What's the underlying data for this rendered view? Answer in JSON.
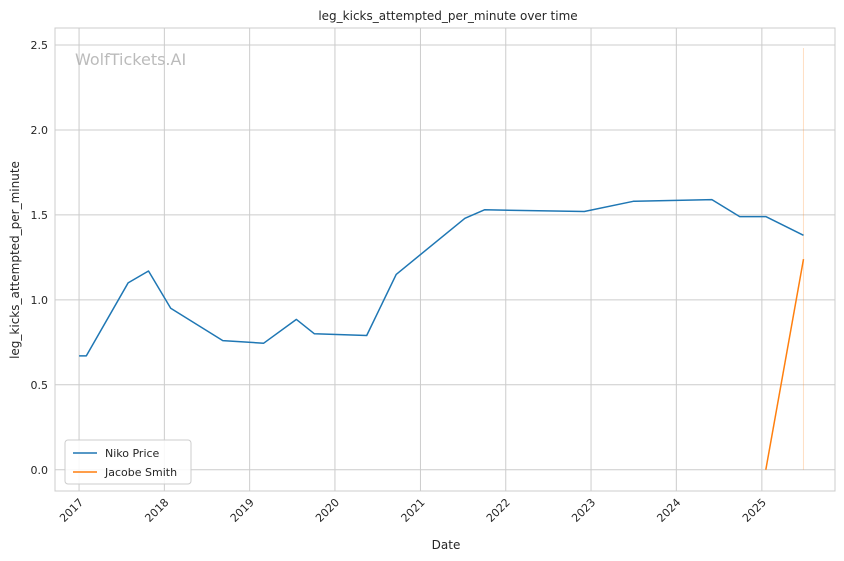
{
  "chart_data": {
    "type": "line",
    "title": "leg_kicks_attempted_per_minute over time",
    "xlabel": "Date",
    "ylabel": "leg_kicks_attempted_per_minute",
    "watermark": "WolfTickets.AI",
    "x_tick_labels": [
      "2017",
      "2018",
      "2019",
      "2020",
      "2021",
      "2022",
      "2023",
      "2024",
      "2025"
    ],
    "y_ticks": [
      0.0,
      0.5,
      1.0,
      1.5,
      2.0,
      2.5
    ],
    "y_tick_labels": [
      "0.0",
      "0.5",
      "1.0",
      "1.5",
      "2.0",
      "2.5"
    ],
    "xlim": [
      "2016-09-20",
      "2025-11-10"
    ],
    "ylim": [
      -0.125,
      2.6
    ],
    "grid": true,
    "legend_position": "lower-left",
    "series": [
      {
        "name": "Niko Price",
        "color": "#1f77b4",
        "points": [
          [
            "2017-01-01",
            0.67
          ],
          [
            "2017-02-01",
            0.67
          ],
          [
            "2017-07-30",
            1.1
          ],
          [
            "2017-10-25",
            1.17
          ],
          [
            "2018-01-28",
            0.95
          ],
          [
            "2018-09-08",
            0.76
          ],
          [
            "2019-03-02",
            0.745
          ],
          [
            "2019-07-20",
            0.885
          ],
          [
            "2019-10-05",
            0.8
          ],
          [
            "2020-05-16",
            0.79
          ],
          [
            "2020-09-19",
            1.15
          ],
          [
            "2021-07-10",
            1.48
          ],
          [
            "2021-10-02",
            1.53
          ],
          [
            "2022-12-03",
            1.52
          ],
          [
            "2023-07-01",
            1.58
          ],
          [
            "2024-06-01",
            1.59
          ],
          [
            "2024-09-28",
            1.49
          ],
          [
            "2025-01-18",
            1.49
          ],
          [
            "2025-06-28",
            1.38
          ]
        ]
      },
      {
        "name": "Jacobe Smith",
        "color": "#ff7f0e",
        "points": [
          [
            "2025-01-18",
            0.0
          ],
          [
            "2025-06-28",
            1.24
          ]
        ]
      }
    ],
    "vertical_marker": {
      "x": "2025-06-28",
      "color": "#ff7f0e"
    }
  }
}
